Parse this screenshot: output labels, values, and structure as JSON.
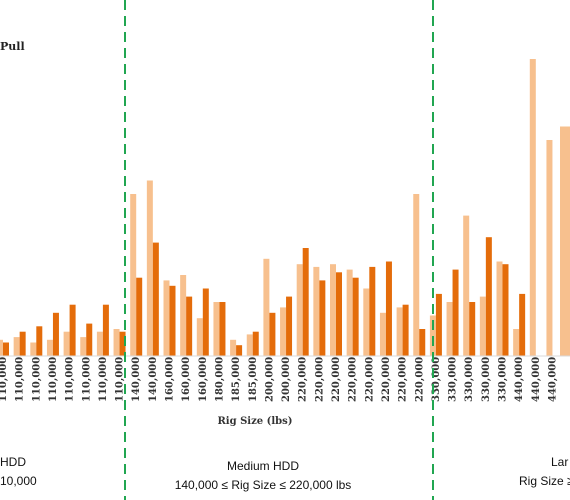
{
  "chart_data": {
    "type": "bar",
    "xlabel": "Rig Size (lbs)",
    "legend": {
      "visible_text": "Pull"
    },
    "colors": {
      "series_light": "#f7c08e",
      "series_dark": "#e46c0a",
      "divider": "#21a651"
    },
    "categories": [
      "110,000",
      "110,000",
      "110,000",
      "110,000",
      "110,000",
      "110,000",
      "110,000",
      "110,000",
      "140,000",
      "140,000",
      "160,000",
      "160,000",
      "160,000",
      "180,000",
      "185,000",
      "185,000",
      "200,000",
      "200,000",
      "220,000",
      "220,000",
      "220,000",
      "220,000",
      "220,000",
      "220,000",
      "220,000",
      "220,000",
      "330,000",
      "330,000",
      "330,000",
      "330,000",
      "330,000",
      "440,000",
      "440,000",
      "440,000"
    ],
    "series": [
      {
        "values": [
          6,
          7,
          5,
          6,
          9,
          7,
          9,
          10,
          60,
          65,
          28,
          30,
          14,
          20,
          6,
          8,
          36,
          18,
          34,
          33,
          34,
          32,
          25,
          16,
          18,
          60,
          15,
          20,
          52,
          22,
          35,
          10,
          110,
          80
        ]
      },
      {
        "values": [
          5,
          9,
          11,
          16,
          19,
          12,
          19,
          9,
          29,
          42,
          26,
          22,
          25,
          20,
          4,
          9,
          16,
          22,
          40,
          28,
          31,
          29,
          33,
          35,
          19,
          10,
          23,
          32,
          20,
          44,
          34,
          23,
          0,
          0
        ]
      }
    ],
    "series_dark_extra": [
      0,
      0,
      0,
      0,
      0,
      0,
      0,
      0,
      0,
      0,
      0,
      0,
      0,
      0,
      0,
      0,
      0,
      0,
      0,
      0,
      0,
      0,
      0,
      0,
      0,
      0,
      0,
      0,
      0,
      0,
      0,
      0,
      0,
      0
    ],
    "groups": [
      {
        "name": "Small HDD",
        "label_line1": "HDD",
        "label_line2": "10,000"
      },
      {
        "name": "Medium HDD",
        "label_line1": "Medium HDD",
        "label_line2": "140,000 ≤ Rig Size ≤ 220,000 lbs"
      },
      {
        "name": "Large HDD",
        "label_line1": "Lar",
        "label_line2": "Rig Size ≥"
      }
    ]
  }
}
